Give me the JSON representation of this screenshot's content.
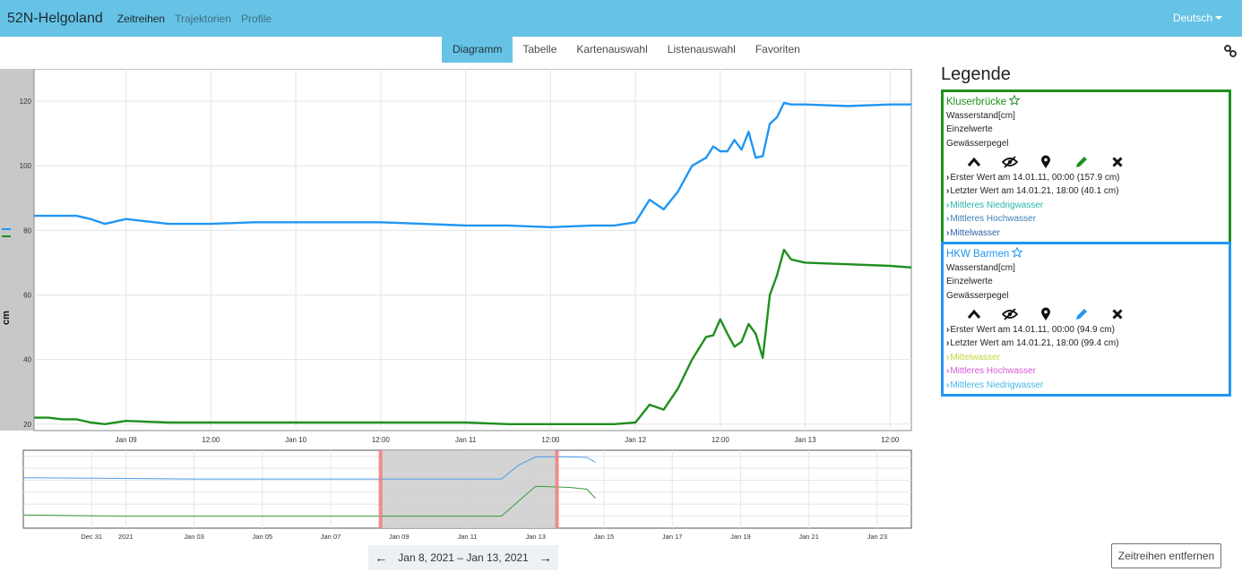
{
  "app": {
    "brand": "52N-Helgoland",
    "nav": [
      {
        "label": "Zeitreihen",
        "active": true
      },
      {
        "label": "Trajektorien",
        "active": false
      },
      {
        "label": "Profile",
        "active": false
      }
    ],
    "language": "Deutsch"
  },
  "tabs": [
    {
      "label": "Diagramm",
      "active": true
    },
    {
      "label": "Tabelle",
      "active": false
    },
    {
      "label": "Kartenauswahl",
      "active": false
    },
    {
      "label": "Listenauswahl",
      "active": false
    },
    {
      "label": "Favoriten",
      "active": false
    }
  ],
  "icons": {
    "share": "link-icon",
    "collapse": "chevron-up-icon",
    "hide": "eye-slash-icon",
    "locate": "map-marker-icon",
    "edit": "pencil-icon",
    "remove": "close-icon",
    "favorite": "star-icon",
    "prev": "arrow-left-icon",
    "next": "arrow-right-icon"
  },
  "chart_data": [
    {
      "type": "line",
      "ylabel": "cm",
      "ylim": [
        18,
        130
      ],
      "y_ticks": [
        20,
        40,
        60,
        80,
        100,
        120
      ],
      "x_range": [
        "2021-01-08T11:00",
        "2021-01-13T15:00"
      ],
      "x_tick_labels": [
        "Jan 09",
        "12:00",
        "Jan 10",
        "12:00",
        "Jan 11",
        "12:00",
        "Jan 12",
        "12:00",
        "Jan 13",
        "12:00"
      ],
      "grid": true,
      "series": [
        {
          "color": "#2196f3",
          "x": [
            "2021-01-08T11:00",
            "2021-01-08T13:00",
            "2021-01-08T15:00",
            "2021-01-08T17:00",
            "2021-01-08T19:00",
            "2021-01-08T21:00",
            "2021-01-09T00:00",
            "2021-01-09T06:00",
            "2021-01-09T12:00",
            "2021-01-09T18:00",
            "2021-01-10T00:00",
            "2021-01-10T06:00",
            "2021-01-10T12:00",
            "2021-01-10T18:00",
            "2021-01-11T00:00",
            "2021-01-11T06:00",
            "2021-01-11T12:00",
            "2021-01-11T18:00",
            "2021-01-11T21:00",
            "2021-01-12T00:00",
            "2021-01-12T02:00",
            "2021-01-12T04:00",
            "2021-01-12T06:00",
            "2021-01-12T08:00",
            "2021-01-12T10:00",
            "2021-01-12T11:00",
            "2021-01-12T12:00",
            "2021-01-12T13:00",
            "2021-01-12T14:00",
            "2021-01-12T15:00",
            "2021-01-12T16:00",
            "2021-01-12T17:00",
            "2021-01-12T18:00",
            "2021-01-12T19:00",
            "2021-01-12T20:00",
            "2021-01-12T21:00",
            "2021-01-12T22:00",
            "2021-01-13T00:00",
            "2021-01-13T06:00",
            "2021-01-13T12:00",
            "2021-01-13T15:00"
          ],
          "values": [
            84.5,
            84.5,
            84.5,
            84.5,
            83.5,
            82.0,
            83.5,
            82.0,
            82.0,
            82.5,
            82.5,
            82.5,
            82.5,
            82.0,
            81.5,
            81.5,
            81.0,
            81.5,
            81.5,
            82.5,
            89.5,
            86.5,
            92.0,
            100.0,
            102.5,
            106.0,
            104.5,
            104.5,
            108.0,
            105.0,
            110.5,
            102.5,
            103.0,
            113.0,
            115.0,
            119.5,
            119.0,
            119.0,
            118.5,
            119.0,
            119.0
          ]
        },
        {
          "color": "#1f8f1f",
          "x": [
            "2021-01-08T11:00",
            "2021-01-08T13:00",
            "2021-01-08T15:00",
            "2021-01-08T17:00",
            "2021-01-08T19:00",
            "2021-01-08T21:00",
            "2021-01-09T00:00",
            "2021-01-09T06:00",
            "2021-01-09T12:00",
            "2021-01-09T18:00",
            "2021-01-10T00:00",
            "2021-01-10T06:00",
            "2021-01-10T12:00",
            "2021-01-10T18:00",
            "2021-01-11T00:00",
            "2021-01-11T06:00",
            "2021-01-11T12:00",
            "2021-01-11T18:00",
            "2021-01-11T21:00",
            "2021-01-12T00:00",
            "2021-01-12T02:00",
            "2021-01-12T04:00",
            "2021-01-12T06:00",
            "2021-01-12T08:00",
            "2021-01-12T10:00",
            "2021-01-12T11:00",
            "2021-01-12T12:00",
            "2021-01-12T13:00",
            "2021-01-12T14:00",
            "2021-01-12T15:00",
            "2021-01-12T16:00",
            "2021-01-12T17:00",
            "2021-01-12T18:00",
            "2021-01-12T19:00",
            "2021-01-12T20:00",
            "2021-01-12T21:00",
            "2021-01-12T22:00",
            "2021-01-13T00:00",
            "2021-01-13T06:00",
            "2021-01-13T12:00",
            "2021-01-13T15:00"
          ],
          "values": [
            22.0,
            22.0,
            21.5,
            21.5,
            20.5,
            20.0,
            21.0,
            20.5,
            20.5,
            20.5,
            20.5,
            20.5,
            20.5,
            20.5,
            20.5,
            20.0,
            20.0,
            20.0,
            20.0,
            20.5,
            26.0,
            24.5,
            31.0,
            40.0,
            47.0,
            47.5,
            52.5,
            48.0,
            44.0,
            45.5,
            51.0,
            48.0,
            40.5,
            60.0,
            66.0,
            74.0,
            71.0,
            70.0,
            69.5,
            69.0,
            68.5
          ]
        }
      ]
    },
    {
      "type": "line",
      "x_tick_labels": [
        "Dec 31",
        "2021",
        "Jan 03",
        "Jan 05",
        "Jan 07",
        "Jan 09",
        "Jan 11",
        "Jan 13",
        "Jan 15",
        "Jan 17",
        "Jan 19",
        "Jan 21",
        "Jan 23"
      ],
      "x_range": [
        "2020-12-29T00:00",
        "2021-01-24T00:00"
      ],
      "selection": [
        "2021-01-08T11:00",
        "2021-01-13T15:00"
      ],
      "series": [
        {
          "color": "#4a9de8",
          "x": [
            "2020-12-29T00:00",
            "2021-01-01T00:00",
            "2021-01-03T00:00",
            "2021-01-05T00:00",
            "2021-01-07T00:00",
            "2021-01-09T00:00",
            "2021-01-11T00:00",
            "2021-01-12T00:00",
            "2021-01-12T12:00",
            "2021-01-13T00:00",
            "2021-01-14T00:00",
            "2021-01-14T12:00",
            "2021-01-14T18:00"
          ],
          "values": [
            84,
            83,
            82,
            82,
            82,
            82,
            82,
            82,
            105,
            119,
            119,
            118,
            110
          ]
        },
        {
          "color": "#3a9a3a",
          "x": [
            "2020-12-29T00:00",
            "2021-01-01T00:00",
            "2021-01-03T00:00",
            "2021-01-05T00:00",
            "2021-01-07T00:00",
            "2021-01-09T00:00",
            "2021-01-11T00:00",
            "2021-01-12T00:00",
            "2021-01-12T12:00",
            "2021-01-13T00:00",
            "2021-01-14T00:00",
            "2021-01-14T12:00",
            "2021-01-14T18:00"
          ],
          "values": [
            22,
            20,
            20,
            20,
            20,
            20,
            20,
            20,
            45,
            70,
            68,
            65,
            50
          ]
        }
      ]
    }
  ],
  "range": {
    "label": "Jan 8, 2021  –  Jan 13, 2021",
    "prev_label": "←",
    "next_label": "→"
  },
  "remove_button": "Zeitreihen entfernen",
  "legend": {
    "title": "Legende",
    "items": [
      {
        "name": "Kluserbrücke",
        "color": "#1f8f1f",
        "phenomenon": "Wasserstand[cm]",
        "type": "Einzelwerte",
        "category": "Gewässerpegel",
        "first": "Erster Wert am 14.01.11, 00:00 (157.9 cm)",
        "last": "Letzter Wert am 14.01.21, 18:00 (40.1 cm)",
        "refs": [
          {
            "label": "Mittleres Niedrigwasser",
            "color": "#2ab3ad"
          },
          {
            "label": "Mittleres Hochwasser",
            "color": "#3d7fb5"
          },
          {
            "label": "Mittelwasser",
            "color": "#2c5fa8"
          }
        ]
      },
      {
        "name": "HKW Barmen",
        "color": "#2196f3",
        "phenomenon": "Wasserstand[cm]",
        "type": "Einzelwerte",
        "category": "Gewässerpegel",
        "first": "Erster Wert am 14.01.11, 00:00 (94.9 cm)",
        "last": "Letzter Wert am 14.01.21, 18:00 (99.4 cm)",
        "refs": [
          {
            "label": "Mittelwasser",
            "color": "#c5d63a"
          },
          {
            "label": "Mittleres Hochwasser",
            "color": "#d65bd6"
          },
          {
            "label": "Mittleres Niedrigwasser",
            "color": "#45b6e6"
          }
        ]
      }
    ]
  }
}
